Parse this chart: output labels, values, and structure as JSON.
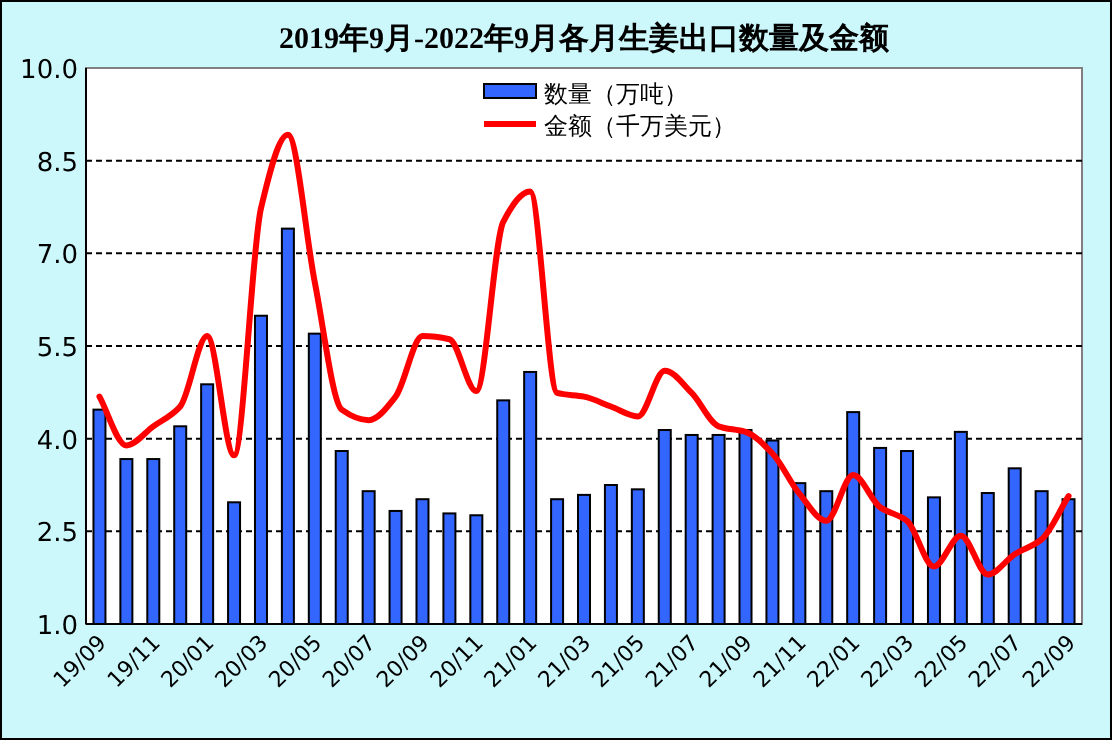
{
  "chart_data": {
    "type": "bar",
    "title": "2019年9月-2022年9月各月生姜出口数量及金额",
    "categories": [
      "19/09",
      null,
      "19/11",
      null,
      "20/01",
      null,
      "20/03",
      null,
      "20/05",
      null,
      "20/07",
      null,
      "20/09",
      null,
      "20/11",
      null,
      "21/01",
      null,
      "21/03",
      null,
      "21/05",
      null,
      "21/07",
      null,
      "21/09",
      null,
      "21/11",
      null,
      "22/01",
      null,
      "22/03",
      null,
      "22/05",
      null,
      "22/07",
      null,
      "22/09"
    ],
    "series": [
      {
        "name": "数量（万吨）",
        "color": "#3366ff",
        "values": [
          4.47,
          3.67,
          3.67,
          4.2,
          4.88,
          2.97,
          5.99,
          7.4,
          5.7,
          3.8,
          3.15,
          2.83,
          3.02,
          2.79,
          2.76,
          4.62,
          5.08,
          3.02,
          3.09,
          3.25,
          3.18,
          4.14,
          4.06,
          4.06,
          4.14,
          3.97,
          3.28,
          3.15,
          4.43,
          3.85,
          3.8,
          3.05,
          4.11,
          3.12,
          3.52,
          3.15,
          3.02
        ]
      },
      {
        "name": "金额（千万美元）",
        "type": "line",
        "color": "#ff0000",
        "values": [
          4.68,
          3.89,
          4.2,
          4.52,
          5.66,
          3.73,
          7.73,
          8.92,
          6.53,
          4.47,
          4.3,
          4.68,
          5.66,
          5.61,
          4.77,
          7.51,
          8.0,
          4.74,
          4.68,
          4.52,
          4.36,
          5.1,
          4.74,
          4.2,
          4.11,
          3.76,
          3.11,
          2.67,
          3.41,
          2.89,
          2.67,
          1.93,
          2.43,
          1.8,
          2.13,
          2.37,
          3.07
        ]
      }
    ],
    "ylim": [
      1,
      10
    ],
    "yticks": [
      {
        "value": 1,
        "label": "1.0"
      },
      {
        "value": 2.5,
        "label": "2.5"
      },
      {
        "value": 4,
        "label": "4.0"
      },
      {
        "value": 5.5,
        "label": "5.5"
      },
      {
        "value": 7,
        "label": "7.0"
      },
      {
        "value": 8.5,
        "label": "8.5"
      },
      {
        "value": 10,
        "label": "10.0"
      }
    ],
    "grid": "y",
    "legend": "top right",
    "line_style": "solid",
    "marker": "none"
  }
}
